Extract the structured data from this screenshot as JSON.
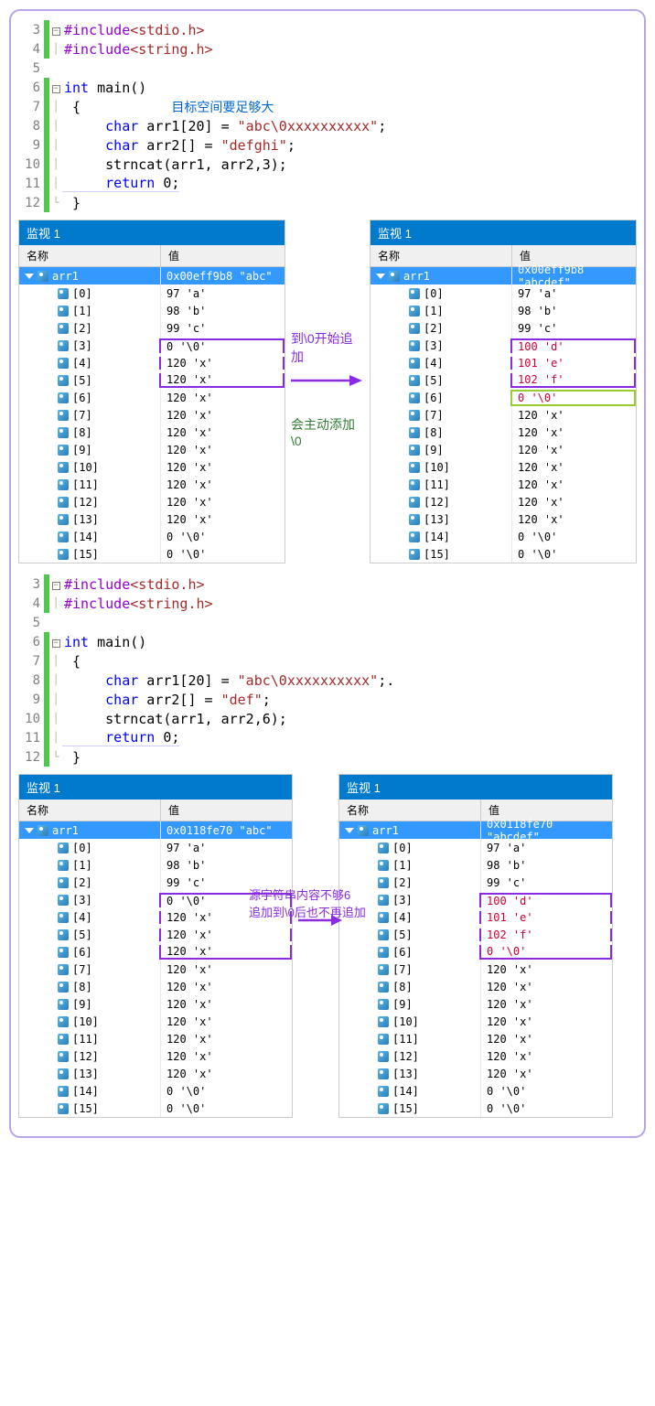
{
  "code1": {
    "lines": [
      {
        "n": "3",
        "gutter": true,
        "fold": "⊟",
        "tokens": [
          {
            "t": "#include",
            "c": "kw-purple"
          },
          {
            "t": "<stdio.h>",
            "c": "str-red"
          }
        ]
      },
      {
        "n": "4",
        "gutter": true,
        "fold": "│",
        "tokens": [
          {
            "t": "#include",
            "c": "kw-purple"
          },
          {
            "t": "<string.h>",
            "c": "str-red"
          }
        ]
      },
      {
        "n": "5",
        "gutter": false,
        "fold": "",
        "tokens": []
      },
      {
        "n": "6",
        "gutter": true,
        "fold": "⊟",
        "tokens": [
          {
            "t": "int",
            "c": "kw-blue"
          },
          {
            "t": " main()",
            "c": ""
          }
        ]
      },
      {
        "n": "7",
        "gutter": true,
        "fold": "│",
        "tokens": [
          {
            "t": " {           ",
            "c": ""
          },
          {
            "t": "目标空间要足够大",
            "c": "comment"
          }
        ]
      },
      {
        "n": "8",
        "gutter": true,
        "fold": "│",
        "tokens": [
          {
            "t": "     ",
            "c": ""
          },
          {
            "t": "char",
            "c": "kw-blue"
          },
          {
            "t": " arr1[20] = ",
            "c": ""
          },
          {
            "t": "\"abc\\0xxxxxxxxxx\"",
            "c": "str-red"
          },
          {
            "t": ";",
            "c": ""
          }
        ]
      },
      {
        "n": "9",
        "gutter": true,
        "fold": "│",
        "tokens": [
          {
            "t": "     ",
            "c": ""
          },
          {
            "t": "char",
            "c": "kw-blue"
          },
          {
            "t": " arr2[] = ",
            "c": ""
          },
          {
            "t": "\"defghi\"",
            "c": "str-red"
          },
          {
            "t": ";",
            "c": ""
          }
        ]
      },
      {
        "n": "10",
        "gutter": true,
        "fold": "│",
        "tokens": [
          {
            "t": "     strncat(arr1, arr2,3);",
            "c": ""
          }
        ]
      },
      {
        "n": "11",
        "gutter": true,
        "fold": "│",
        "tokens": [
          {
            "t": "     ",
            "c": ""
          },
          {
            "t": "return",
            "c": "kw-blue"
          },
          {
            "t": " 0;",
            "c": ""
          }
        ],
        "underline": true
      },
      {
        "n": "12",
        "gutter": true,
        "fold": "└",
        "tokens": [
          {
            "t": " }",
            "c": ""
          }
        ]
      }
    ]
  },
  "code2": {
    "lines": [
      {
        "n": "3",
        "gutter": true,
        "fold": "⊟",
        "tokens": [
          {
            "t": "#include",
            "c": "kw-purple"
          },
          {
            "t": "<stdio.h>",
            "c": "str-red"
          }
        ]
      },
      {
        "n": "4",
        "gutter": true,
        "fold": "│",
        "tokens": [
          {
            "t": "#include",
            "c": "kw-purple"
          },
          {
            "t": "<string.h>",
            "c": "str-red"
          }
        ]
      },
      {
        "n": "5",
        "gutter": false,
        "fold": "",
        "tokens": []
      },
      {
        "n": "6",
        "gutter": true,
        "fold": "⊟",
        "tokens": [
          {
            "t": "int",
            "c": "kw-blue"
          },
          {
            "t": " main()",
            "c": ""
          }
        ]
      },
      {
        "n": "7",
        "gutter": true,
        "fold": "│",
        "tokens": [
          {
            "t": " {",
            "c": ""
          }
        ]
      },
      {
        "n": "8",
        "gutter": true,
        "fold": "│",
        "tokens": [
          {
            "t": "     ",
            "c": ""
          },
          {
            "t": "char",
            "c": "kw-blue"
          },
          {
            "t": " arr1[20] = ",
            "c": ""
          },
          {
            "t": "\"abc\\0xxxxxxxxxx\"",
            "c": "str-red"
          },
          {
            "t": ";.",
            "c": ""
          }
        ]
      },
      {
        "n": "9",
        "gutter": true,
        "fold": "│",
        "tokens": [
          {
            "t": "     ",
            "c": ""
          },
          {
            "t": "char",
            "c": "kw-blue"
          },
          {
            "t": " arr2[] = ",
            "c": ""
          },
          {
            "t": "\"def\"",
            "c": "str-red"
          },
          {
            "t": ";",
            "c": ""
          }
        ]
      },
      {
        "n": "10",
        "gutter": true,
        "fold": "│",
        "tokens": [
          {
            "t": "     strncat(arr1, arr2,6);",
            "c": ""
          }
        ]
      },
      {
        "n": "11",
        "gutter": true,
        "fold": "│",
        "tokens": [
          {
            "t": "     ",
            "c": ""
          },
          {
            "t": "return",
            "c": "kw-blue"
          },
          {
            "t": " 0;",
            "c": ""
          }
        ],
        "underline": true
      },
      {
        "n": "12",
        "gutter": true,
        "fold": "└",
        "tokens": [
          {
            "t": " }",
            "c": ""
          }
        ]
      }
    ]
  },
  "watch": {
    "title": "监视 1",
    "col_name": "名称",
    "col_val": "值",
    "arr_name": "arr1"
  },
  "panel1_left": {
    "root_val": "0x00eff9b8 \"abc\"",
    "rows": [
      {
        "idx": "[0]",
        "val": "97 'a'"
      },
      {
        "idx": "[1]",
        "val": "98 'b'"
      },
      {
        "idx": "[2]",
        "val": "99 'c'"
      },
      {
        "idx": "[3]",
        "val": "0 '\\0'",
        "hl": "purple-top"
      },
      {
        "idx": "[4]",
        "val": "120 'x'",
        "hl": "purple-mid"
      },
      {
        "idx": "[5]",
        "val": "120 'x'",
        "hl": "purple-bot"
      },
      {
        "idx": "[6]",
        "val": "120 'x'"
      },
      {
        "idx": "[7]",
        "val": "120 'x'"
      },
      {
        "idx": "[8]",
        "val": "120 'x'"
      },
      {
        "idx": "[9]",
        "val": "120 'x'"
      },
      {
        "idx": "[10]",
        "val": "120 'x'"
      },
      {
        "idx": "[11]",
        "val": "120 'x'"
      },
      {
        "idx": "[12]",
        "val": "120 'x'"
      },
      {
        "idx": "[13]",
        "val": "120 'x'"
      },
      {
        "idx": "[14]",
        "val": "0 '\\0'"
      },
      {
        "idx": "[15]",
        "val": "0 '\\0'"
      }
    ]
  },
  "panel1_right": {
    "root_val": "0x00eff9b8 \"abcdef\"",
    "rows": [
      {
        "idx": "[0]",
        "val": "97 'a'"
      },
      {
        "idx": "[1]",
        "val": "98 'b'"
      },
      {
        "idx": "[2]",
        "val": "99 'c'"
      },
      {
        "idx": "[3]",
        "val": "100 'd'",
        "hl": "purple-top",
        "red": true
      },
      {
        "idx": "[4]",
        "val": "101 'e'",
        "hl": "purple-mid",
        "red": true
      },
      {
        "idx": "[5]",
        "val": "102 'f'",
        "hl": "purple-bot",
        "red": true
      },
      {
        "idx": "[6]",
        "val": "0 '\\0'",
        "hl": "green",
        "red": true
      },
      {
        "idx": "[7]",
        "val": "120 'x'"
      },
      {
        "idx": "[8]",
        "val": "120 'x'"
      },
      {
        "idx": "[9]",
        "val": "120 'x'"
      },
      {
        "idx": "[10]",
        "val": "120 'x'"
      },
      {
        "idx": "[11]",
        "val": "120 'x'"
      },
      {
        "idx": "[12]",
        "val": "120 'x'"
      },
      {
        "idx": "[13]",
        "val": "120 'x'"
      },
      {
        "idx": "[14]",
        "val": "0 '\\0'"
      },
      {
        "idx": "[15]",
        "val": "0 '\\0'"
      }
    ]
  },
  "panel2_left": {
    "root_val": "0x0118fe70 \"abc\"",
    "rows": [
      {
        "idx": "[0]",
        "val": "97 'a'"
      },
      {
        "idx": "[1]",
        "val": "98 'b'"
      },
      {
        "idx": "[2]",
        "val": "99 'c'"
      },
      {
        "idx": "[3]",
        "val": "0 '\\0'",
        "hl": "purple-top"
      },
      {
        "idx": "[4]",
        "val": "120 'x'",
        "hl": "purple-mid"
      },
      {
        "idx": "[5]",
        "val": "120 'x'",
        "hl": "purple-mid"
      },
      {
        "idx": "[6]",
        "val": "120 'x'",
        "hl": "purple-bot"
      },
      {
        "idx": "[7]",
        "val": "120 'x'"
      },
      {
        "idx": "[8]",
        "val": "120 'x'"
      },
      {
        "idx": "[9]",
        "val": "120 'x'"
      },
      {
        "idx": "[10]",
        "val": "120 'x'"
      },
      {
        "idx": "[11]",
        "val": "120 'x'"
      },
      {
        "idx": "[12]",
        "val": "120 'x'"
      },
      {
        "idx": "[13]",
        "val": "120 'x'"
      },
      {
        "idx": "[14]",
        "val": "0 '\\0'"
      },
      {
        "idx": "[15]",
        "val": "0 '\\0'"
      }
    ]
  },
  "panel2_right": {
    "root_val": "0x0118fe70 \"abcdef\"",
    "rows": [
      {
        "idx": "[0]",
        "val": "97 'a'"
      },
      {
        "idx": "[1]",
        "val": "98 'b'"
      },
      {
        "idx": "[2]",
        "val": "99 'c'"
      },
      {
        "idx": "[3]",
        "val": "100 'd'",
        "hl": "purple-top",
        "red": true
      },
      {
        "idx": "[4]",
        "val": "101 'e'",
        "hl": "purple-mid",
        "red": true
      },
      {
        "idx": "[5]",
        "val": "102 'f'",
        "hl": "purple-mid",
        "red": true
      },
      {
        "idx": "[6]",
        "val": "0 '\\0'",
        "hl": "purple-bot",
        "red": true
      },
      {
        "idx": "[7]",
        "val": "120 'x'"
      },
      {
        "idx": "[8]",
        "val": "120 'x'"
      },
      {
        "idx": "[9]",
        "val": "120 'x'"
      },
      {
        "idx": "[10]",
        "val": "120 'x'"
      },
      {
        "idx": "[11]",
        "val": "120 'x'"
      },
      {
        "idx": "[12]",
        "val": "120 'x'"
      },
      {
        "idx": "[13]",
        "val": "120 'x'"
      },
      {
        "idx": "[14]",
        "val": "0 '\\0'"
      },
      {
        "idx": "[15]",
        "val": "0 '\\0'"
      }
    ]
  },
  "annotations": {
    "a1": "到\\0开始追加",
    "a2": "会主动添加\\0",
    "a3": "源字符串内容不够6",
    "a4": "追加到\\0后也不再追加"
  },
  "colors": {
    "arrow": "#8a2be2"
  }
}
